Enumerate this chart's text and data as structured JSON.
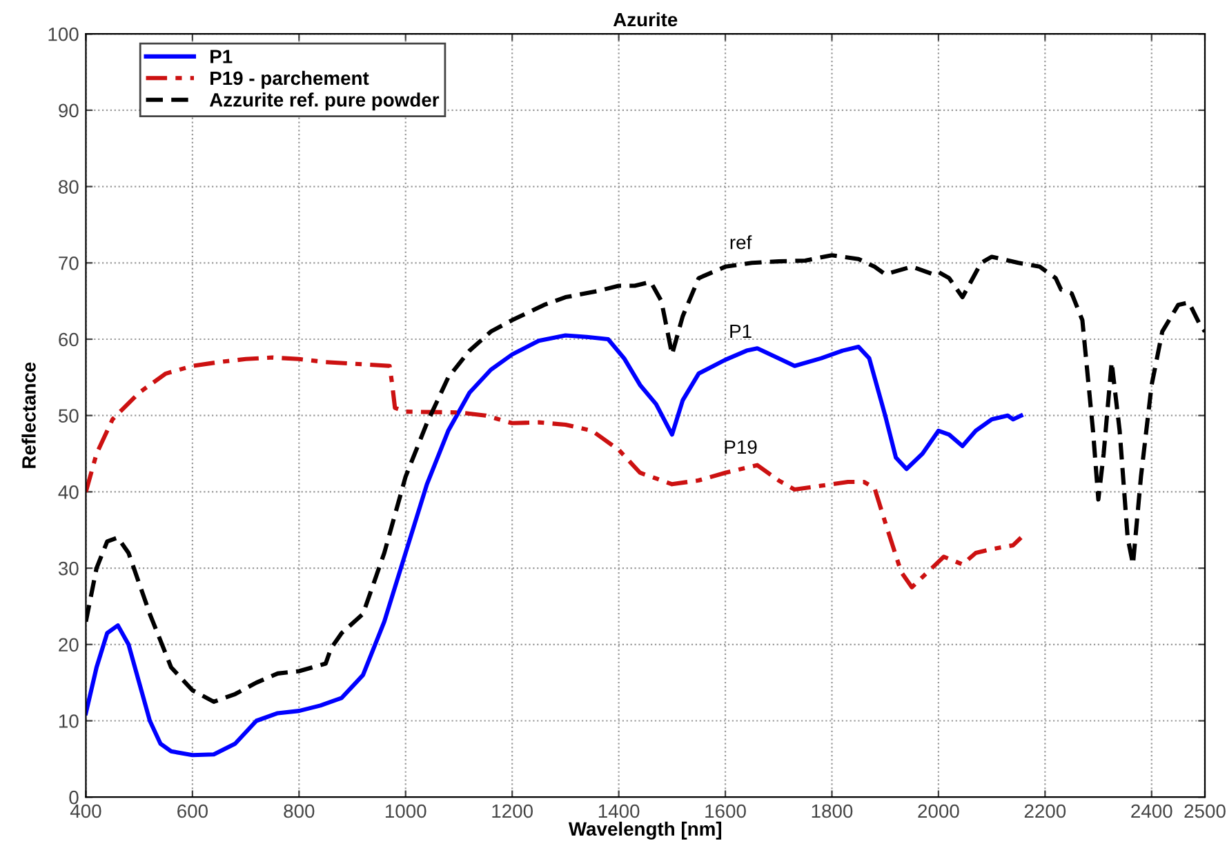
{
  "chart_data": {
    "type": "line",
    "title": "Azurite",
    "xlabel": "Wavelength [nm]",
    "ylabel": "Reflectance",
    "xlim": [
      400,
      2500
    ],
    "xticks": [
      400,
      600,
      800,
      1000,
      1200,
      1400,
      1600,
      1800,
      2000,
      2200,
      2400,
      2500
    ],
    "ylim": [
      0,
      100
    ],
    "yticks": [
      0,
      10,
      20,
      30,
      40,
      50,
      60,
      70,
      80,
      90,
      100
    ],
    "grid": true,
    "legend": "top left",
    "annotations": [
      "P1",
      "P19",
      "ref"
    ],
    "series": [
      {
        "name": "P1",
        "color": "#0000ff",
        "line_style": "solid",
        "x": [
          400,
          420,
          440,
          460,
          480,
          500,
          520,
          540,
          560,
          600,
          640,
          680,
          720,
          760,
          800,
          840,
          880,
          920,
          960,
          1000,
          1040,
          1080,
          1120,
          1160,
          1200,
          1250,
          1300,
          1340,
          1380,
          1410,
          1440,
          1470,
          1500,
          1520,
          1550,
          1600,
          1640,
          1660,
          1700,
          1730,
          1780,
          1820,
          1850,
          1870,
          1900,
          1920,
          1940,
          1970,
          2000,
          2020,
          2045,
          2070,
          2100,
          2130,
          2140,
          2155
        ],
        "values": [
          11,
          17,
          21.5,
          22.5,
          20,
          15,
          10,
          7,
          6,
          5.5,
          5.6,
          7,
          10,
          11,
          11.3,
          12,
          13,
          16,
          23,
          32,
          41,
          48,
          53,
          56,
          58,
          59.8,
          60.5,
          60.3,
          60,
          57.5,
          54,
          51.5,
          47.5,
          52,
          55.5,
          57.3,
          58.5,
          58.8,
          57.5,
          56.5,
          57.5,
          58.5,
          59,
          57.5,
          50,
          44.5,
          43,
          45,
          48,
          47.5,
          46,
          48,
          49.5,
          50,
          49.5,
          50
        ]
      },
      {
        "name": "P19 - parchement",
        "color": "#cc1111",
        "line_style": "dashdot",
        "x": [
          400,
          420,
          450,
          500,
          550,
          600,
          650,
          700,
          750,
          800,
          850,
          900,
          970,
          975,
          980,
          1000,
          1100,
          1150,
          1200,
          1250,
          1300,
          1350,
          1400,
          1440,
          1500,
          1550,
          1600,
          1660,
          1700,
          1730,
          1780,
          1830,
          1860,
          1880,
          1900,
          1930,
          1950,
          1980,
          2010,
          2045,
          2070,
          2100,
          2140,
          2155
        ],
        "values": [
          40,
          45,
          49.5,
          53,
          55.5,
          56.5,
          57,
          57.4,
          57.6,
          57.4,
          57,
          56.8,
          56.5,
          54,
          51,
          50.5,
          50.4,
          50,
          49,
          49.1,
          48.8,
          48,
          45.5,
          42.5,
          41,
          41.5,
          42.5,
          43.5,
          41.5,
          40.3,
          40.8,
          41.3,
          41.3,
          40.5,
          36,
          29.5,
          27.5,
          29.5,
          31.5,
          30.5,
          32,
          32.5,
          33,
          34
        ]
      },
      {
        "name": "Azzurite ref. pure powder",
        "color": "#000000",
        "line_style": "dashed",
        "x": [
          400,
          420,
          440,
          460,
          480,
          520,
          560,
          600,
          640,
          680,
          720,
          760,
          800,
          850,
          860,
          880,
          920,
          960,
          1000,
          1040,
          1080,
          1120,
          1160,
          1200,
          1260,
          1300,
          1360,
          1400,
          1430,
          1460,
          1480,
          1500,
          1520,
          1550,
          1600,
          1650,
          1700,
          1750,
          1800,
          1850,
          1880,
          1900,
          1950,
          1990,
          2000,
          2020,
          2045,
          2080,
          2100,
          2150,
          2190,
          2220,
          2230,
          2250,
          2270,
          2290,
          2300,
          2310,
          2325,
          2340,
          2355,
          2365,
          2380,
          2400,
          2420,
          2450,
          2470,
          2490,
          2500
        ],
        "values": [
          23,
          30,
          33.5,
          34,
          32,
          24,
          17,
          14,
          12.5,
          13.5,
          15,
          16.2,
          16.5,
          17.5,
          19.5,
          21.5,
          24,
          32,
          42,
          49,
          55,
          58.5,
          61,
          62.5,
          64.5,
          65.5,
          66.3,
          67,
          67,
          67.5,
          65,
          58,
          63,
          68,
          69.5,
          70,
          70.2,
          70.3,
          71,
          70.5,
          69.5,
          68.5,
          69.5,
          68.5,
          68.8,
          68,
          65.5,
          70,
          70.8,
          70,
          69.5,
          68,
          66.5,
          66,
          62.5,
          48,
          39,
          45,
          57,
          48,
          34,
          30.5,
          42,
          54,
          61,
          64.5,
          64.8,
          62,
          61
        ]
      }
    ]
  }
}
